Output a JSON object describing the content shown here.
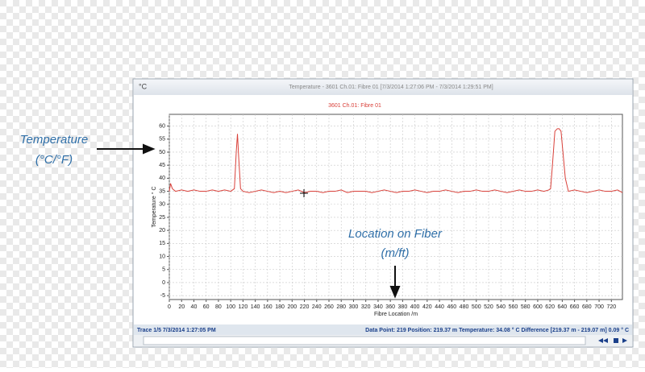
{
  "window": {
    "icon": "°C",
    "title": "Temperature - 3601 Ch.01: Fibre 01 [7/3/2014 1:27:06 PM - 7/3/2014 1:29:51 PM]"
  },
  "status": {
    "left": "Trace 1/5  7/3/2014 1:27:05 PM",
    "right": "Data Point: 219 Position: 219.37 m Temperature: 34.08 ° C Difference [219.37 m - 219.07 m] 0.09 ° C"
  },
  "annotations": {
    "temperature": [
      "Temperature",
      "(°C/°F)"
    ],
    "location": [
      "Location on Fiber",
      "(m/ft)"
    ]
  },
  "chart_data": {
    "type": "line",
    "title": "3601 Ch.01: Fibre 01",
    "xlabel": "Fibre Location /m",
    "ylabel": "Temperature ° C",
    "color": "#d9413a",
    "grid": true,
    "xlim": [
      0,
      738
    ],
    "ylim": [
      -6.5,
      64.5
    ],
    "xticks": [
      0,
      20,
      40,
      60,
      80,
      100,
      120,
      140,
      160,
      180,
      200,
      220,
      240,
      260,
      280,
      300,
      320,
      340,
      360,
      380,
      400,
      420,
      440,
      460,
      480,
      500,
      520,
      540,
      560,
      580,
      600,
      620,
      640,
      660,
      680,
      700,
      720
    ],
    "yticks": [
      -5,
      0,
      5,
      10,
      15,
      20,
      25,
      30,
      35,
      40,
      45,
      50,
      55,
      60
    ],
    "x": [
      0,
      2,
      5,
      10,
      20,
      30,
      40,
      50,
      60,
      70,
      80,
      90,
      100,
      106,
      109,
      111,
      113,
      116,
      120,
      130,
      140,
      150,
      160,
      170,
      180,
      190,
      200,
      210,
      220,
      230,
      240,
      250,
      260,
      270,
      280,
      290,
      300,
      310,
      320,
      330,
      340,
      350,
      360,
      370,
      380,
      390,
      400,
      410,
      420,
      430,
      440,
      450,
      460,
      470,
      480,
      490,
      500,
      510,
      520,
      530,
      540,
      550,
      560,
      570,
      580,
      590,
      600,
      610,
      618,
      621,
      624,
      628,
      632,
      635,
      638,
      645,
      650,
      660,
      670,
      680,
      690,
      700,
      710,
      720,
      730,
      738
    ],
    "values": [
      35,
      38,
      36,
      35,
      35.5,
      35,
      35.5,
      35,
      35,
      35.5,
      35,
      35.5,
      35,
      36,
      50,
      57,
      48,
      36,
      35,
      34.5,
      35,
      35.5,
      35,
      34.5,
      35,
      34.5,
      35,
      35.5,
      34.5,
      35,
      35,
      34.5,
      35,
      35,
      35.5,
      34.5,
      35,
      35,
      35,
      34.5,
      35,
      35.5,
      35,
      34.5,
      35,
      35,
      35.5,
      35,
      34.5,
      35,
      35,
      35.5,
      35,
      34.5,
      35,
      35,
      35.5,
      35,
      35,
      35.5,
      35,
      34.5,
      35,
      35.5,
      35,
      35,
      35.5,
      35,
      35.5,
      36,
      45,
      58,
      59,
      59,
      58,
      40,
      35,
      35.5,
      35,
      34.5,
      35,
      35.5,
      35,
      35,
      35.5,
      34.5
    ]
  }
}
